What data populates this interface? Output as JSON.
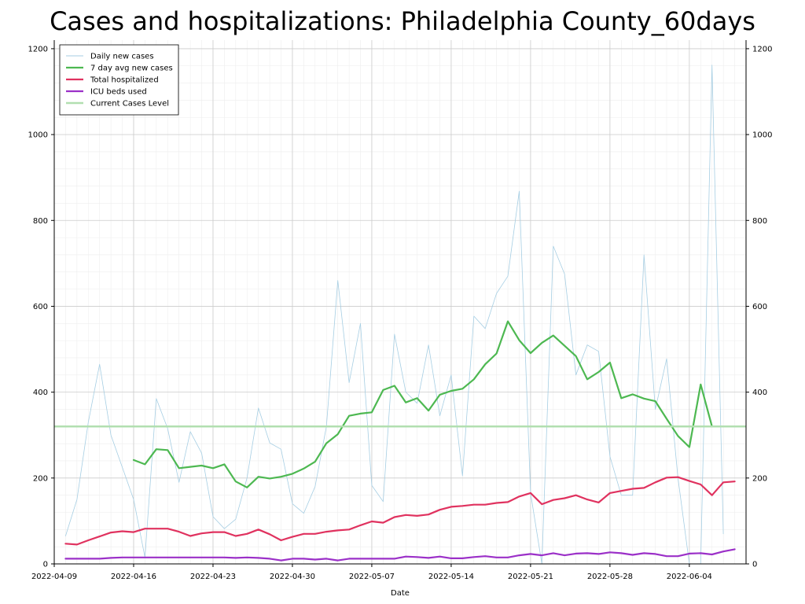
{
  "chart_data": {
    "type": "line",
    "title": "Cases and hospitalizations: Philadelphia County_60days",
    "xlabel": "Date",
    "ylabel": "",
    "x_start": "2022-04-10",
    "x_range": [
      "2022-04-09",
      "2022-06-09"
    ],
    "ylim": [
      0,
      1220
    ],
    "y_ticks": [
      0,
      200,
      400,
      600,
      800,
      1000,
      1200
    ],
    "x_tick_labels": [
      "2022-04-09",
      "2022-04-16",
      "2022-04-23",
      "2022-04-30",
      "2022-05-07",
      "2022-05-14",
      "2022-05-21",
      "2022-05-28",
      "2022-06-04"
    ],
    "grid": true,
    "legend_position": "top-left",
    "series": [
      {
        "name": "Daily new cases",
        "color": "#a6cee3",
        "width": 0.8,
        "values": [
          65,
          150,
          330,
          465,
          300,
          225,
          150,
          15,
          385,
          315,
          190,
          308,
          258,
          110,
          82,
          104,
          200,
          363,
          282,
          267,
          140,
          118,
          180,
          320,
          660,
          422,
          560,
          183,
          145,
          535,
          400,
          374,
          510,
          345,
          440,
          205,
          577,
          548,
          630,
          670,
          868,
          165,
          0,
          740,
          675,
          440,
          510,
          495,
          250,
          160,
          160,
          720,
          360,
          478,
          200,
          0,
          0,
          1162,
          70
        ]
      },
      {
        "name": "7 day avg new cases",
        "color": "#4db851",
        "width": 2.2,
        "values": [
          null,
          null,
          null,
          null,
          null,
          null,
          242,
          232,
          267,
          265,
          223,
          226,
          229,
          223,
          232,
          192,
          178,
          203,
          199,
          203,
          210,
          222,
          238,
          281,
          302,
          345,
          350,
          353,
          405,
          415,
          376,
          386,
          357,
          394,
          403,
          408,
          430,
          465,
          490,
          565,
          521,
          491,
          515,
          532,
          508,
          484,
          430,
          447,
          469,
          386,
          395,
          385,
          379,
          338,
          298,
          272,
          418,
          320,
          null
        ]
      },
      {
        "name": "Total hospitalized",
        "color": "#e0325f",
        "width": 2.2,
        "values": [
          47,
          45,
          55,
          64,
          73,
          76,
          74,
          82,
          82,
          82,
          75,
          65,
          71,
          74,
          74,
          65,
          70,
          80,
          69,
          55,
          63,
          70,
          70,
          75,
          78,
          80,
          90,
          99,
          96,
          109,
          114,
          112,
          115,
          126,
          133,
          135,
          138,
          138,
          142,
          144,
          157,
          165,
          139,
          149,
          153,
          160,
          150,
          143,
          165,
          170,
          175,
          177,
          190,
          201,
          202,
          193,
          185,
          160,
          190,
          192
        ]
      },
      {
        "name": "ICU beds used",
        "color": "#9b30c8",
        "width": 2.2,
        "values": [
          12,
          12,
          12,
          12,
          14,
          15,
          15,
          15,
          15,
          15,
          15,
          15,
          15,
          15,
          15,
          14,
          15,
          14,
          12,
          8,
          12,
          12,
          10,
          12,
          8,
          12,
          12,
          12,
          12,
          12,
          17,
          16,
          14,
          17,
          13,
          13,
          16,
          18,
          15,
          15,
          20,
          23,
          20,
          25,
          20,
          24,
          25,
          23,
          27,
          25,
          21,
          25,
          23,
          18,
          18,
          24,
          25,
          22,
          29,
          34
        ]
      },
      {
        "name": "Current Cases Level",
        "color": "#b2dfb0",
        "width": 2.5,
        "constant": 320
      }
    ]
  }
}
